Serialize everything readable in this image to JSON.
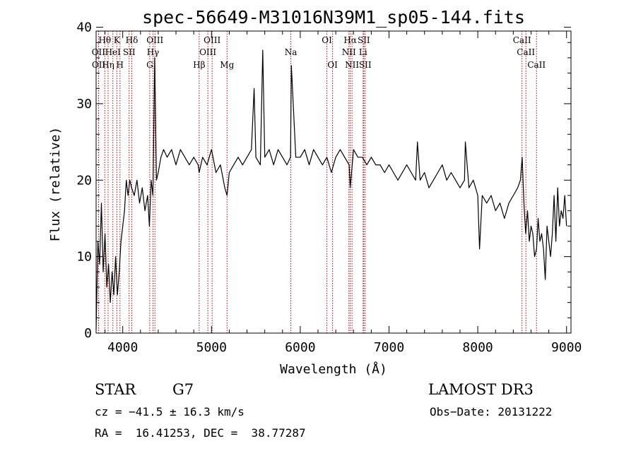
{
  "chart_data": {
    "type": "line",
    "title": "spec-56649-M31016N39M1_sp05-144.fits",
    "xlabel": "Wavelength (Å)",
    "ylabel": "Flux (relative)",
    "xlim": [
      3700,
      9050
    ],
    "ylim": [
      0,
      39.5
    ],
    "xticks": [
      4000,
      5000,
      6000,
      7000,
      8000,
      9000
    ],
    "yticks": [
      0,
      10,
      20,
      30,
      40
    ],
    "grid": false,
    "spectrum": {
      "x": [
        3700,
        3720,
        3740,
        3760,
        3780,
        3800,
        3820,
        3840,
        3860,
        3880,
        3900,
        3920,
        3940,
        3960,
        3980,
        4000,
        4020,
        4040,
        4060,
        4080,
        4100,
        4130,
        4160,
        4190,
        4220,
        4250,
        4280,
        4300,
        4320,
        4340,
        4360,
        4380,
        4400,
        4430,
        4460,
        4500,
        4550,
        4600,
        4650,
        4700,
        4750,
        4800,
        4850,
        4861,
        4900,
        4950,
        5000,
        5050,
        5100,
        5150,
        5175,
        5200,
        5250,
        5300,
        5350,
        5400,
        5450,
        5480,
        5500,
        5550,
        5577,
        5600,
        5650,
        5700,
        5750,
        5800,
        5850,
        5890,
        5900,
        5950,
        6000,
        6050,
        6100,
        6150,
        6200,
        6250,
        6300,
        6350,
        6400,
        6450,
        6500,
        6550,
        6563,
        6600,
        6650,
        6700,
        6750,
        6800,
        6850,
        6900,
        6950,
        7000,
        7050,
        7100,
        7150,
        7200,
        7250,
        7300,
        7320,
        7350,
        7400,
        7450,
        7500,
        7550,
        7600,
        7650,
        7700,
        7750,
        7800,
        7850,
        7860,
        7900,
        7950,
        8000,
        8020,
        8050,
        8100,
        8150,
        8200,
        8250,
        8300,
        8350,
        8400,
        8450,
        8480,
        8500,
        8520,
        8540,
        8560,
        8580,
        8600,
        8620,
        8640,
        8662,
        8680,
        8700,
        8720,
        8740,
        8760,
        8780,
        8800,
        8820,
        8840,
        8860,
        8880,
        8900,
        8920,
        8940,
        8960,
        8980,
        9000
      ],
      "y": [
        0.5,
        12,
        9,
        17,
        8,
        13,
        6,
        9,
        4,
        8,
        5,
        10,
        5,
        8,
        12,
        14,
        16,
        20,
        18,
        20,
        19,
        18,
        20,
        17,
        19,
        16,
        18,
        14,
        20,
        18,
        36,
        20,
        21,
        23,
        24,
        23,
        24,
        22,
        24,
        23,
        22,
        23,
        22,
        21,
        23,
        22,
        24,
        21,
        22,
        19,
        18,
        21,
        22,
        23,
        22,
        23,
        24,
        32,
        23,
        22,
        37,
        23,
        24,
        22,
        24,
        23,
        22,
        23,
        35,
        23,
        23,
        24,
        22,
        24,
        23,
        22,
        23,
        21,
        23,
        24,
        23,
        22,
        19,
        24,
        23,
        23,
        22,
        23,
        22,
        22,
        21,
        22,
        21,
        20,
        21,
        22,
        21,
        20,
        25,
        20,
        21,
        19,
        20,
        21,
        22,
        20,
        21,
        20,
        19,
        20,
        25,
        19,
        20,
        18,
        11,
        18,
        17,
        18,
        16,
        17,
        15,
        17,
        18,
        19,
        20,
        23,
        17,
        13,
        16,
        12,
        14,
        13,
        10,
        11,
        15,
        12,
        13,
        11,
        7,
        14,
        12,
        10,
        13,
        18,
        12,
        19,
        14,
        16,
        15,
        18,
        14
      ]
    },
    "lines": [
      {
        "label": "Hθ",
        "wave": 3798,
        "row": 0
      },
      {
        "label": "OII",
        "wave": 3727,
        "row": 1
      },
      {
        "label": "OII",
        "wave": 3729,
        "row": 2
      },
      {
        "label": "Hη",
        "wave": 3835,
        "row": 2
      },
      {
        "label": "HeI",
        "wave": 3889,
        "row": 1
      },
      {
        "label": "K",
        "wave": 3934,
        "row": 0
      },
      {
        "label": "H",
        "wave": 3969,
        "row": 2
      },
      {
        "label": "Hδ",
        "wave": 4102,
        "row": 0
      },
      {
        "label": "SII",
        "wave": 4072,
        "row": 1
      },
      {
        "label": "G",
        "wave": 4304,
        "row": 2
      },
      {
        "label": "Hγ",
        "wave": 4341,
        "row": 1
      },
      {
        "label": "OIII",
        "wave": 4363,
        "row": 0
      },
      {
        "label": "Hβ",
        "wave": 4861,
        "row": 2
      },
      {
        "label": "OIII",
        "wave": 4959,
        "row": 1
      },
      {
        "label": "OIII",
        "wave": 5007,
        "row": 0
      },
      {
        "label": "Mg",
        "wave": 5175,
        "row": 2
      },
      {
        "label": "Na",
        "wave": 5894,
        "row": 1
      },
      {
        "label": "OI",
        "wave": 6300,
        "row": 0
      },
      {
        "label": "OI",
        "wave": 6364,
        "row": 2
      },
      {
        "label": "NII",
        "wave": 6548,
        "row": 1
      },
      {
        "label": "Hα",
        "wave": 6563,
        "row": 0
      },
      {
        "label": "NII",
        "wave": 6583,
        "row": 2
      },
      {
        "label": "SII",
        "wave": 6716,
        "row": 0
      },
      {
        "label": "Li",
        "wave": 6708,
        "row": 1
      },
      {
        "label": "SII",
        "wave": 6731,
        "row": 2
      },
      {
        "label": "CaII",
        "wave": 8498,
        "row": 0
      },
      {
        "label": "CaII",
        "wave": 8542,
        "row": 1
      },
      {
        "label": "CaII",
        "wave": 8662,
        "row": 2
      }
    ],
    "colors": {
      "spectrum": "#000000",
      "lines": "#c00000",
      "axes": "#000000"
    }
  },
  "info": {
    "class": "STAR",
    "subclass": "G7",
    "survey": "LAMOST DR3",
    "cz": "cz = −41.5 ± 16.3 km/s",
    "obs_date": "Obs−Date: 20131222",
    "coords": "RA =  16.41253, DEC =  38.77287"
  }
}
